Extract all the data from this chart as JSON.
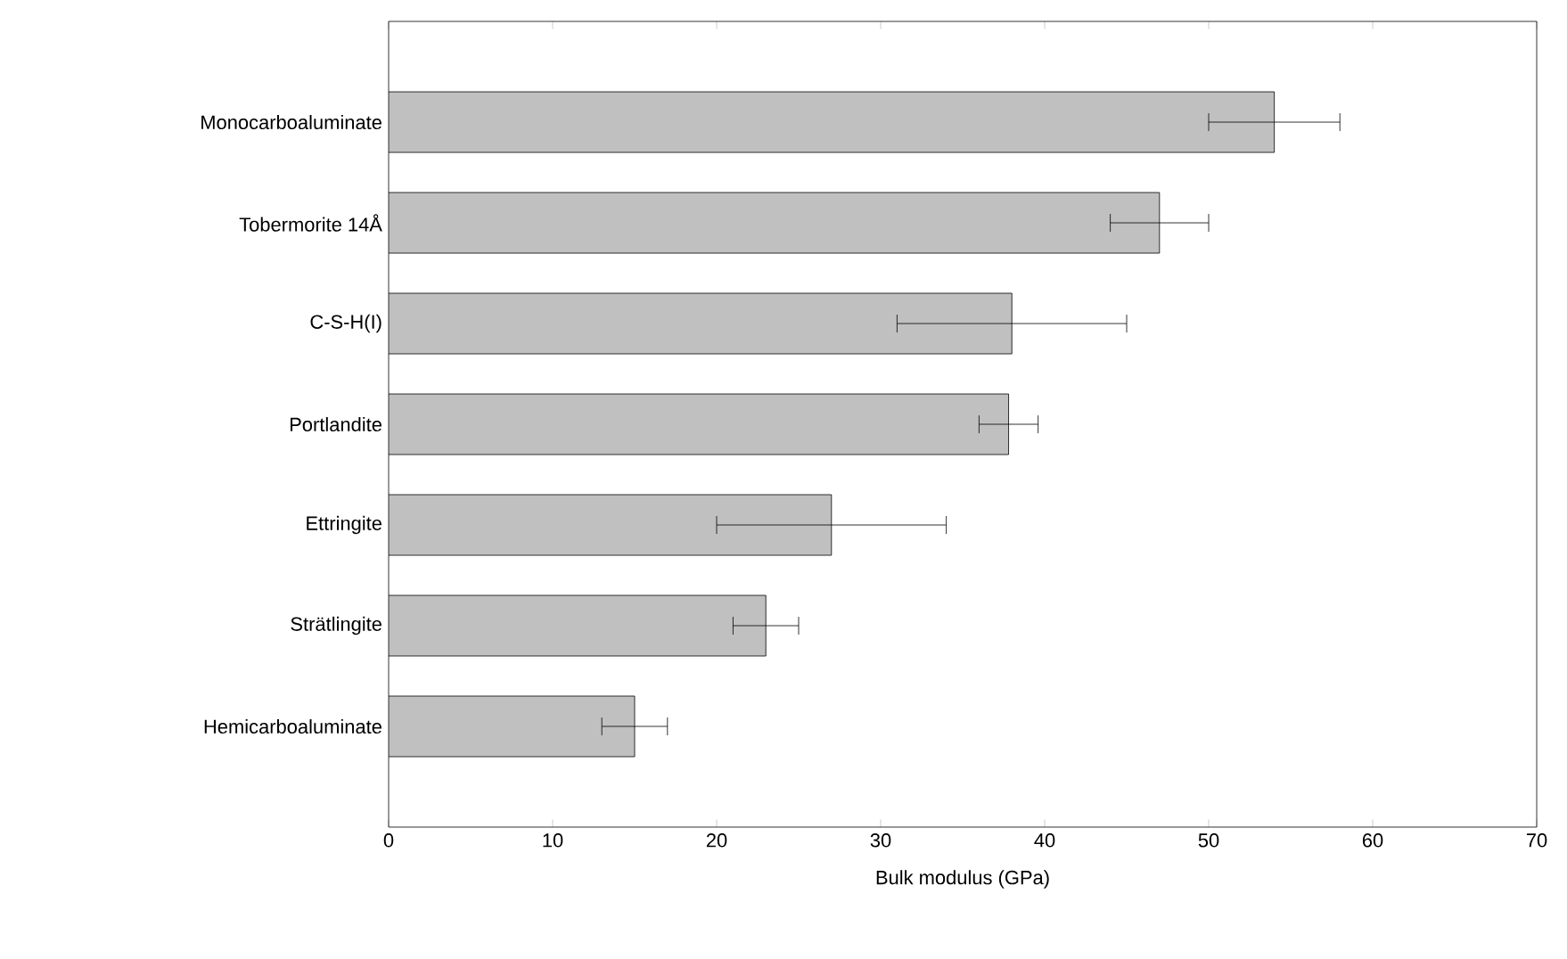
{
  "chart_data": {
    "type": "bar",
    "orientation": "horizontal",
    "xlabel": "Bulk modulus (GPa)",
    "categories": [
      "Monocarboaluminate",
      "Tobermorite 14Å",
      "C-S-H(I)",
      "Portlandite",
      "Ettringite",
      "Strätlingite",
      "Hemicarboaluminate"
    ],
    "values": [
      54,
      47,
      38,
      37.8,
      27,
      23,
      15
    ],
    "errors": [
      4,
      3,
      7,
      1.8,
      7,
      2,
      2
    ],
    "color": "#c0c0c0",
    "xlim": [
      0,
      70
    ],
    "xticks": [
      0,
      10,
      20,
      30,
      40,
      50,
      60,
      70
    ]
  }
}
